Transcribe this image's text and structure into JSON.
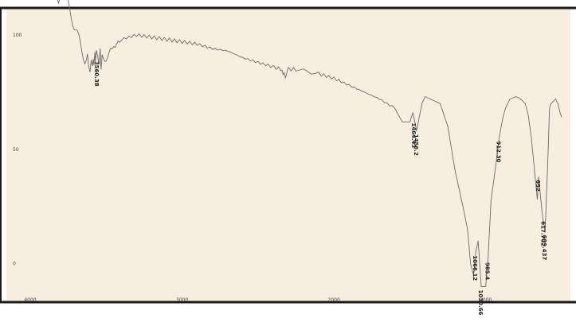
{
  "colors": {
    "outer_background": "#ffffff",
    "panel_background": "#f7eedf",
    "frame_border": "#1a1a1a",
    "trace": "#6b6b6b",
    "label_text": "#222222"
  },
  "chart_data": {
    "type": "line",
    "title": "",
    "xlabel": "",
    "ylabel": "",
    "grid": false,
    "legend": "none",
    "x_reversed": true,
    "xlim": [
      4000,
      500
    ],
    "ylim": [
      -14,
      109
    ],
    "x_ticks": [
      "4000",
      "3000",
      "2000",
      "1000"
    ],
    "y_ticks": [
      "100",
      "50",
      "0"
    ],
    "series": [
      {
        "x": [
          4000,
          3920,
          3840,
          3760,
          3700,
          3640,
          3590,
          3560,
          3520,
          3460,
          3400,
          3300,
          3200,
          3100,
          3000,
          2900,
          2800,
          2700,
          2600,
          2500,
          2400,
          2350,
          2320,
          2300,
          2250,
          2100,
          2000,
          1900,
          1800,
          1700,
          1600,
          1550,
          1500,
          1480,
          1470,
          1456,
          1420,
          1400,
          1300,
          1250,
          1200,
          1150,
          1120,
          1100,
          1080,
          1066,
          1050,
          1030,
          1000,
          995,
          985,
          975,
          965,
          950,
          930,
          912,
          890,
          870,
          840,
          800,
          770,
          740,
          720,
          700,
          675,
          660,
          652,
          640,
          625,
          609,
          600,
          590,
          580,
          570,
          555,
          540,
          525,
          510,
          500
        ],
        "y": [
          127,
          125,
          120,
          115,
          105,
          90,
          85,
          90,
          89,
          94,
          98,
          100,
          99,
          98,
          97,
          96,
          94,
          93,
          90,
          88,
          86,
          85,
          82,
          85,
          85,
          83,
          81,
          78,
          75,
          72,
          68,
          62,
          62,
          66,
          63,
          58,
          70,
          73,
          70,
          60,
          40,
          25,
          15,
          0,
          -5,
          5,
          10,
          -10,
          -10,
          -5,
          2,
          15,
          28,
          35,
          45,
          55,
          63,
          68,
          72,
          73,
          72,
          70,
          65,
          55,
          38,
          28,
          38,
          30,
          20,
          14,
          30,
          47,
          68,
          70,
          71,
          72,
          70,
          66,
          64
        ]
      }
    ],
    "peak_labels": [
      "3560.38",
      "1464.43",
      "1456.2",
      "1066.12",
      "1030.66",
      "985.4",
      "912.30",
      "652",
      "617.702",
      "609.437"
    ],
    "peak_positions": [
      [
        3560,
        90
      ],
      [
        1470,
        63
      ],
      [
        1456,
        58
      ],
      [
        1066,
        5
      ],
      [
        1030,
        -10
      ],
      [
        985,
        2
      ],
      [
        912,
        55
      ],
      [
        652,
        38
      ],
      [
        617.702,
        20
      ],
      [
        609.437,
        14
      ]
    ]
  }
}
